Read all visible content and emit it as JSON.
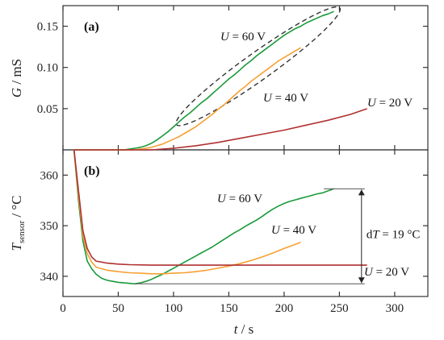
{
  "chart_data": [
    {
      "type": "line",
      "panel_label": "(a)",
      "ylabel_main": "G",
      "ylabel_sep": " / ",
      "ylabel_unit": "mS",
      "xlim": [
        0,
        330
      ],
      "ylim": [
        0,
        0.175
      ],
      "yticks": [
        0.05,
        0.1,
        0.15
      ],
      "ytick_labels": [
        "0.05",
        "0.10",
        "0.15"
      ],
      "series": [
        {
          "label_text": "U = 60 V",
          "label_var": "U",
          "label_val": " = 60 V",
          "color": "#1a9a3a",
          "x": [
            10,
            55,
            60,
            65,
            70,
            75,
            80,
            85,
            90,
            95,
            100,
            105,
            110,
            115,
            120,
            125,
            130,
            135,
            140,
            145,
            150,
            155,
            160,
            165,
            170,
            175,
            180,
            185,
            190,
            195,
            200,
            205,
            210,
            215,
            220,
            225,
            230,
            235,
            240,
            245
          ],
          "y": [
            0,
            0.0,
            0.001,
            0.002,
            0.003,
            0.005,
            0.008,
            0.012,
            0.017,
            0.022,
            0.028,
            0.034,
            0.04,
            0.045,
            0.051,
            0.057,
            0.062,
            0.068,
            0.074,
            0.08,
            0.086,
            0.091,
            0.097,
            0.103,
            0.108,
            0.114,
            0.119,
            0.124,
            0.129,
            0.134,
            0.139,
            0.143,
            0.147,
            0.15,
            0.154,
            0.157,
            0.16,
            0.163,
            0.165,
            0.168
          ]
        },
        {
          "label_text": "U = 40 V",
          "label_var": "U",
          "label_val": " = 40 V",
          "color": "#f5a033",
          "x": [
            10,
            65,
            70,
            75,
            80,
            85,
            90,
            95,
            100,
            105,
            110,
            115,
            120,
            125,
            130,
            135,
            140,
            145,
            150,
            155,
            160,
            165,
            170,
            175,
            180,
            185,
            190,
            195,
            200,
            205,
            210,
            215
          ],
          "y": [
            0,
            0.0,
            0.001,
            0.002,
            0.003,
            0.005,
            0.007,
            0.01,
            0.013,
            0.016,
            0.02,
            0.024,
            0.028,
            0.033,
            0.038,
            0.043,
            0.049,
            0.054,
            0.06,
            0.066,
            0.072,
            0.077,
            0.083,
            0.088,
            0.093,
            0.098,
            0.103,
            0.108,
            0.112,
            0.116,
            0.12,
            0.124
          ]
        },
        {
          "label_text": "U = 20 V",
          "label_var": "U",
          "label_val": " = 20 V",
          "color": "#b03030",
          "x": [
            10,
            80,
            100,
            120,
            140,
            160,
            180,
            200,
            220,
            240,
            260,
            275
          ],
          "y": [
            0,
            0.0,
            0.002,
            0.005,
            0.009,
            0.014,
            0.019,
            0.024,
            0.03,
            0.036,
            0.043,
            0.05
          ]
        }
      ]
    },
    {
      "type": "line",
      "panel_label": "(b)",
      "ylabel_main": "T",
      "ylabel_sub": "sensor",
      "ylabel_unit": " / °C",
      "xlabel_var": "t",
      "xlabel_unit": " / s",
      "xlim": [
        0,
        330
      ],
      "ylim": [
        336,
        365
      ],
      "xticks": [
        0,
        50,
        100,
        150,
        200,
        250,
        300
      ],
      "xtick_labels": [
        "0",
        "50",
        "100",
        "150",
        "200",
        "250",
        "300"
      ],
      "yticks": [
        340,
        350,
        360
      ],
      "ytick_labels": [
        "340",
        "350",
        "360"
      ],
      "annotation": {
        "text_prefix": "d",
        "text_var": "T",
        "text_rest": " = 19 °C",
        "t_low": 338.5,
        "t_high": 357.3,
        "x_arrow": 270,
        "x_line_start_low": 65,
        "x_line_start_high": 236
      },
      "series": [
        {
          "label_text": "U = 60 V",
          "label_var": "U",
          "label_val": " = 60 V",
          "color": "#1a9a3a",
          "x": [
            10,
            14,
            18,
            22,
            26,
            30,
            35,
            40,
            45,
            50,
            55,
            60,
            65,
            70,
            75,
            80,
            85,
            90,
            95,
            100,
            105,
            110,
            115,
            120,
            125,
            130,
            135,
            140,
            145,
            150,
            155,
            160,
            165,
            170,
            175,
            180,
            185,
            190,
            195,
            200,
            205,
            210,
            215,
            220,
            225,
            230,
            235,
            240,
            245
          ],
          "y": [
            365,
            355,
            347,
            343,
            341.5,
            340.4,
            339.6,
            339.2,
            339.0,
            338.8,
            338.7,
            338.6,
            338.5,
            338.7,
            339.0,
            339.4,
            339.9,
            340.4,
            341.0,
            341.6,
            342.2,
            342.8,
            343.4,
            344.0,
            344.6,
            345.2,
            345.8,
            346.5,
            347.2,
            347.9,
            348.6,
            349.2,
            349.9,
            350.5,
            351.1,
            351.8,
            352.6,
            353.3,
            353.9,
            354.4,
            354.8,
            355.1,
            355.4,
            355.7,
            356.0,
            356.3,
            356.5,
            356.9,
            357.3
          ]
        },
        {
          "label_text": "U = 40 V",
          "label_var": "U",
          "label_val": " = 40 V",
          "color": "#f5a033",
          "x": [
            10,
            14,
            18,
            22,
            26,
            30,
            40,
            50,
            60,
            70,
            80,
            90,
            100,
            110,
            120,
            130,
            140,
            150,
            160,
            170,
            180,
            190,
            200,
            210,
            215
          ],
          "y": [
            365,
            356,
            348,
            344.5,
            342.8,
            341.8,
            341.2,
            340.9,
            340.7,
            340.6,
            340.5,
            340.5,
            340.6,
            340.7,
            340.9,
            341.2,
            341.6,
            342.0,
            342.5,
            343.1,
            343.8,
            344.6,
            345.5,
            346.3,
            346.7
          ]
        },
        {
          "label_text": "U = 20 V",
          "label_var": "U",
          "label_val": " = 20 V",
          "color": "#b03030",
          "x": [
            10,
            14,
            18,
            22,
            26,
            30,
            40,
            50,
            60,
            80,
            100,
            120,
            140,
            160,
            180,
            200,
            220,
            240,
            260,
            275
          ],
          "y": [
            365,
            357,
            349,
            345.5,
            343.8,
            343.0,
            342.6,
            342.4,
            342.3,
            342.2,
            342.2,
            342.2,
            342.2,
            342.2,
            342.2,
            342.2,
            342.2,
            342.2,
            342.2,
            342.2
          ]
        }
      ]
    }
  ]
}
